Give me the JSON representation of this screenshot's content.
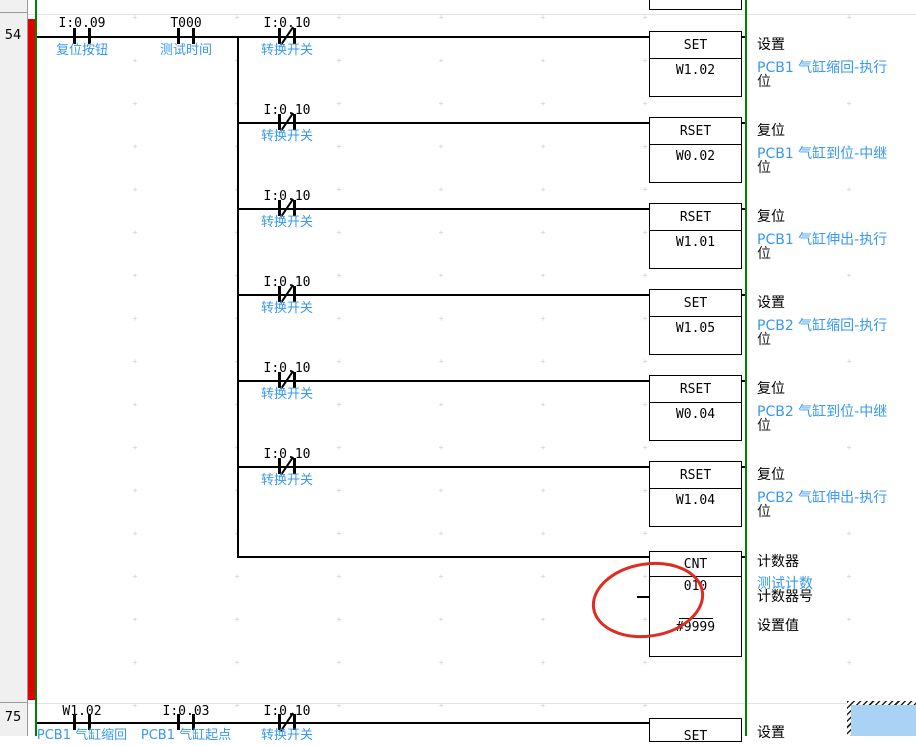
{
  "colors": {
    "bus_green": "#008200",
    "cursor_bar_red": "#e10000",
    "comment_blue": "#3898f0",
    "annotation_red": "#e02b20",
    "selection_blue": "#a9d2f4",
    "margin_gray": "#f0f0f0"
  },
  "rungs": {
    "r54": {
      "number": "54",
      "input_contacts": [
        {
          "address": "I:0.09",
          "comment": "复位按钮"
        },
        {
          "address": "T000",
          "comment": "测试时间"
        },
        {
          "address": "I:0.10",
          "comment": "转换开关"
        }
      ],
      "branch_contact": {
        "address": "I:0.10",
        "comment": "转换开关"
      },
      "outputs": [
        {
          "mnemonic": "SET",
          "operand": "W1.02",
          "ann_title": "设置",
          "ann_comment": "PCB1 气缸缩回-执行",
          "ann_wrap": "位"
        },
        {
          "mnemonic": "RSET",
          "operand": "W0.02",
          "ann_title": "复位",
          "ann_comment": "PCB1 气缸到位-中继",
          "ann_wrap": "位"
        },
        {
          "mnemonic": "RSET",
          "operand": "W1.01",
          "ann_title": "复位",
          "ann_comment": "PCB1 气缸伸出-执行",
          "ann_wrap": "位"
        },
        {
          "mnemonic": "SET",
          "operand": "W1.05",
          "ann_title": "设置",
          "ann_comment": "PCB2 气缸缩回-执行",
          "ann_wrap": "位"
        },
        {
          "mnemonic": "RSET",
          "operand": "W0.04",
          "ann_title": "复位",
          "ann_comment": "PCB2 气缸到位-中继",
          "ann_wrap": "位"
        },
        {
          "mnemonic": "RSET",
          "operand": "W1.04",
          "ann_title": "复位",
          "ann_comment": "PCB2 气缸伸出-执行",
          "ann_wrap": "位"
        }
      ],
      "counter": {
        "mnemonic": "CNT",
        "counter_number": "010",
        "set_value": "#9999",
        "ann_title": "计数器",
        "number_comment": "测试计数",
        "number_label": "计数器号",
        "value_label": "设置值"
      }
    },
    "r75": {
      "number": "75",
      "input_contacts": [
        {
          "address": "W1.02",
          "comment": "PCB1 气缸缩回"
        },
        {
          "address": "I:0.03",
          "comment": "PCB1 气缸起点"
        },
        {
          "address": "I:0.10",
          "comment": "转换开关"
        }
      ],
      "output": {
        "mnemonic": "SET",
        "ann_title": "设置"
      }
    }
  }
}
